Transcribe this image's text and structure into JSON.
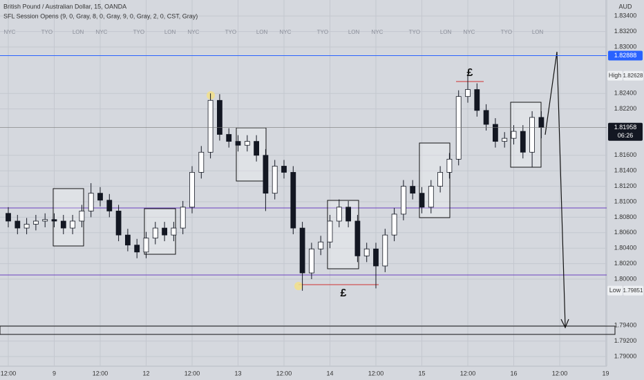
{
  "chart_data": {
    "type": "candlestick",
    "title": "British Pound / Australian Dollar, 15, OANDA",
    "subtitle": "SFL Session Opens (9, 0, Gray, 8, 0, Gray, 9, 0, Gray, 2, 0, CST, Gray)",
    "currency": "AUD",
    "categories": [
      "12:00",
      null,
      null,
      null,
      null,
      "9",
      null,
      null,
      null,
      null,
      "12:00",
      null,
      null,
      null,
      null,
      "12",
      null,
      null,
      null,
      null,
      "12:00",
      null,
      null,
      null,
      null,
      "13",
      null,
      null,
      null,
      null,
      "12:00",
      null,
      null,
      null,
      null,
      "14",
      null,
      null,
      null,
      null,
      "12:00",
      null,
      null,
      null,
      null,
      "15",
      null,
      null,
      null,
      null,
      "12:00",
      null,
      null,
      null,
      null,
      "16",
      null,
      null,
      null,
      null,
      "12:00",
      null,
      null,
      null,
      null,
      "19"
    ],
    "open": [
      1.8085,
      1.8075,
      1.8066,
      1.8071,
      1.8075,
      1.8077,
      1.8075,
      1.8066,
      1.8075,
      1.8088,
      1.8111,
      1.8102,
      1.8088,
      1.8057,
      1.8044,
      1.8035,
      1.8053,
      1.8066,
      1.8057,
      1.8066,
      1.8093,
      1.8138,
      1.8164,
      1.8231,
      1.8187,
      1.8178,
      1.8173,
      1.8178,
      1.816,
      1.8111,
      1.8146,
      1.8138,
      1.8066,
      1.8008,
      1.8039,
      1.8048,
      1.8075,
      1.8093,
      1.8075,
      1.803,
      1.8039,
      1.8017,
      1.8057,
      1.8084,
      1.812,
      1.8111,
      1.8093,
      1.812,
      1.8138,
      1.8155,
      1.8236,
      1.8245,
      1.8218,
      1.82,
      1.8178,
      1.8182,
      1.8191,
      1.8164,
      1.8209,
      null,
      null,
      null,
      null,
      null,
      null,
      null
    ],
    "high": [
      1.8093,
      1.8083,
      1.8079,
      1.8083,
      1.8085,
      1.8085,
      1.8083,
      1.8083,
      1.8096,
      1.8124,
      1.8119,
      1.811,
      1.8096,
      1.8065,
      1.8052,
      1.8061,
      1.8074,
      1.8074,
      1.8074,
      1.8101,
      1.8146,
      1.8172,
      1.824,
      1.8239,
      1.8195,
      1.8186,
      1.8186,
      1.8186,
      1.8168,
      1.8154,
      1.8154,
      1.8146,
      1.8074,
      1.8047,
      1.8056,
      1.8083,
      1.8103,
      1.8101,
      1.8083,
      1.8047,
      1.8047,
      1.8065,
      1.8092,
      1.8128,
      1.8128,
      1.8119,
      1.8128,
      1.8146,
      1.8163,
      1.8244,
      1.8263,
      1.8253,
      1.8226,
      1.8208,
      1.819,
      1.8199,
      1.8199,
      1.8217,
      1.8217,
      null,
      null,
      null,
      null,
      null,
      null,
      null
    ],
    "low": [
      1.8067,
      1.8058,
      1.8058,
      1.8063,
      1.8067,
      1.8067,
      1.8058,
      1.8058,
      1.8067,
      1.808,
      1.8094,
      1.808,
      1.8049,
      1.8036,
      1.8027,
      1.8027,
      1.8045,
      1.8049,
      1.8049,
      1.8058,
      1.8085,
      1.813,
      1.8156,
      1.8179,
      1.817,
      1.8165,
      1.8165,
      1.8152,
      1.8088,
      1.8103,
      1.813,
      1.8058,
      1.7985,
      1.8,
      1.8031,
      1.804,
      1.8067,
      1.8067,
      1.8022,
      1.8022,
      1.7988,
      1.8009,
      1.8049,
      1.8076,
      1.8103,
      1.8085,
      1.8085,
      1.8112,
      1.813,
      1.8147,
      1.8228,
      1.821,
      1.8192,
      1.817,
      1.817,
      1.8174,
      1.8156,
      1.8145,
      1.8182,
      null,
      null,
      null,
      null,
      null,
      null,
      null
    ],
    "close": [
      1.8075,
      1.8066,
      1.8071,
      1.8075,
      1.8077,
      1.8075,
      1.8066,
      1.8075,
      1.8088,
      1.8111,
      1.8102,
      1.8088,
      1.8057,
      1.8044,
      1.8035,
      1.8053,
      1.8066,
      1.8057,
      1.8066,
      1.8093,
      1.8138,
      1.8164,
      1.8231,
      1.8187,
      1.8178,
      1.8173,
      1.8178,
      1.816,
      1.8111,
      1.8146,
      1.8138,
      1.8066,
      1.8008,
      1.8039,
      1.8048,
      1.8075,
      1.8093,
      1.8075,
      1.803,
      1.8039,
      1.8017,
      1.8057,
      1.8084,
      1.812,
      1.8111,
      1.8093,
      1.812,
      1.8138,
      1.8155,
      1.8236,
      1.8245,
      1.8218,
      1.82,
      1.8178,
      1.8182,
      1.8191,
      1.8164,
      1.8209,
      1.8196,
      null,
      null,
      null,
      null,
      null,
      null,
      null
    ],
    "up_color": "#ffffff",
    "down_color": "#131722",
    "sessions": [
      "NYC",
      "TYO",
      "LON",
      "NYC",
      "TYO",
      "LON",
      "NYC",
      "TYO",
      "LON",
      "NYC",
      "TYO",
      "LON",
      "NYC",
      "TYO",
      "LON",
      "NYC",
      "TYO",
      "LON"
    ],
    "ylim": [
      1.78875,
      1.83607
    ],
    "yticks": [
      {
        "value": 1.834,
        "label": "1.83400"
      },
      {
        "value": 1.832,
        "label": "1.83200"
      },
      {
        "value": 1.83,
        "label": "1.83000"
      },
      {
        "value": 1.824,
        "label": "1.82400"
      },
      {
        "value": 1.822,
        "label": "1.82200"
      },
      {
        "value": 1.816,
        "label": "1.81600"
      },
      {
        "value": 1.814,
        "label": "1.81400"
      },
      {
        "value": 1.812,
        "label": "1.81200"
      },
      {
        "value": 1.81,
        "label": "1.81000"
      },
      {
        "value": 1.808,
        "label": "1.80800"
      },
      {
        "value": 1.806,
        "label": "1.80600"
      },
      {
        "value": 1.804,
        "label": "1.80400"
      },
      {
        "value": 1.802,
        "label": "1.80200"
      },
      {
        "value": 1.8,
        "label": "1.80000"
      },
      {
        "value": 1.794,
        "label": "1.79400"
      },
      {
        "value": 1.792,
        "label": "1.79200"
      },
      {
        "value": 1.79,
        "label": "1.79000"
      }
    ],
    "grid": true,
    "price_line": {
      "value": 1.82888,
      "color": "#2962ff"
    },
    "last_price": {
      "value": 1.81958,
      "countdown": "06:26"
    },
    "high_marker": {
      "label": "High",
      "value": 1.82628
    },
    "low_marker": {
      "label": "Low",
      "value": 1.79851
    },
    "annotations": [
      "£",
      "£"
    ]
  }
}
